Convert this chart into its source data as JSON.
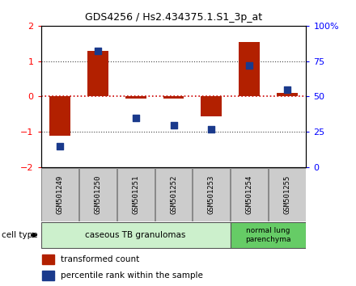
{
  "title": "GDS4256 / Hs2.434375.1.S1_3p_at",
  "samples": [
    "GSM501249",
    "GSM501250",
    "GSM501251",
    "GSM501252",
    "GSM501253",
    "GSM501254",
    "GSM501255"
  ],
  "transformed_count": [
    -1.1,
    1.3,
    -0.05,
    -0.05,
    -0.55,
    1.55,
    0.1
  ],
  "percentile_rank": [
    15,
    82,
    35,
    30,
    27,
    72,
    55
  ],
  "ylim_left": [
    -2,
    2
  ],
  "ylim_right": [
    0,
    100
  ],
  "yticks_left": [
    -2,
    -1,
    0,
    1,
    2
  ],
  "yticks_right": [
    0,
    25,
    50,
    75,
    100
  ],
  "ytick_labels_right": [
    "0",
    "25",
    "50",
    "75",
    "100%"
  ],
  "bar_color": "#b22000",
  "scatter_color": "#1a3a8c",
  "hline_color": "#cc0000",
  "dotted_color": "#444444",
  "sample_box_color": "#cccccc",
  "sample_box_edge": "#888888",
  "group1_color": "#ccf0cc",
  "group2_color": "#66cc66",
  "legend_items": [
    {
      "label": "transformed count",
      "color": "#b22000"
    },
    {
      "label": "percentile rank within the sample",
      "color": "#1a3a8c"
    }
  ],
  "cell_type_label": "cell type"
}
